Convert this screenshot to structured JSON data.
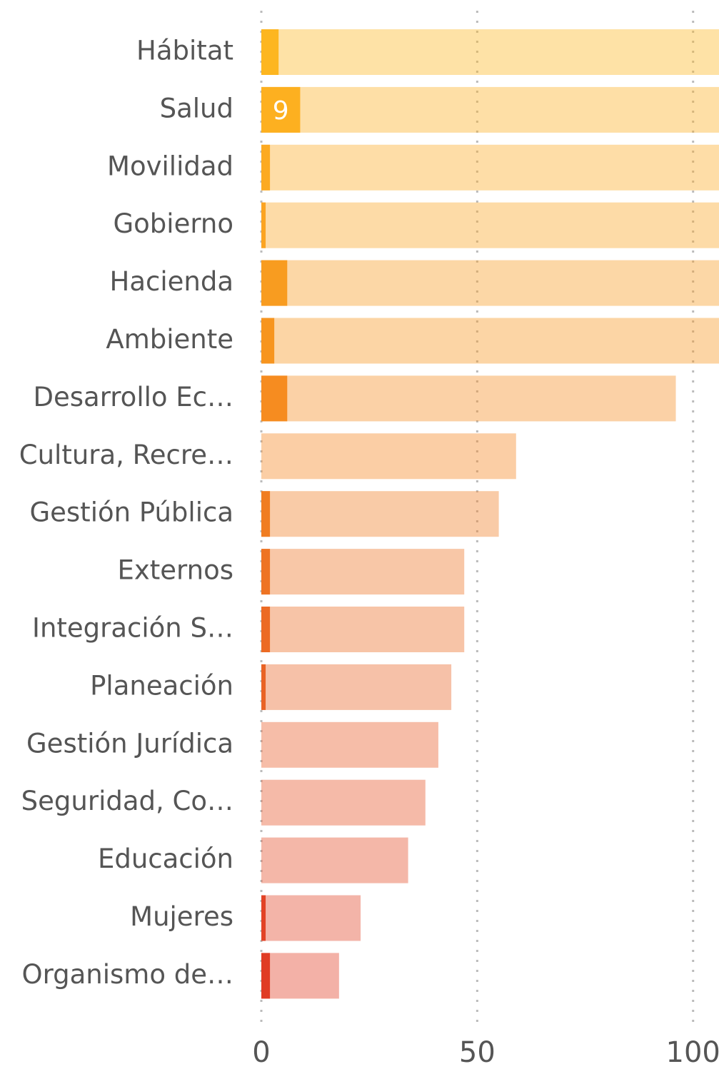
{
  "chart_data": {
    "type": "overlay_bar",
    "categories": [
      "Hábitat",
      "Salud",
      "Movilidad",
      "Gobierno",
      "Hacienda",
      "Ambiente",
      "Desarrollo Ec…",
      "Cultura, Recre…",
      "Gestión Pública",
      "Externos",
      "Integración S…",
      "Planeación",
      "Gestión Jurídica",
      "Seguridad, Co…",
      "Educación",
      "Mujeres",
      "Organismo de…"
    ],
    "values": [
      4,
      9,
      2,
      1,
      6,
      3,
      6,
      0,
      2,
      2,
      2,
      1,
      0,
      0,
      0,
      1,
      2
    ],
    "value_labels": [
      null,
      "9",
      null,
      null,
      null,
      null,
      null,
      null,
      null,
      null,
      null,
      null,
      null,
      null,
      null,
      null,
      null
    ],
    "totals": [
      110,
      110,
      110,
      110,
      110,
      110,
      96,
      59,
      55,
      47,
      47,
      44,
      41,
      38,
      34,
      23,
      18
    ],
    "colors": [
      "#fdb620",
      "#fdb020",
      "#fcaa22",
      "#fba422",
      "#f89c20",
      "#f7951f",
      "#f68c20",
      "#f4841f",
      "#f07d22",
      "#ee7424",
      "#ec6b24",
      "#e96325",
      "#e85b25",
      "#e65325",
      "#e44b25",
      "#e24326",
      "#e03c24"
    ],
    "xlim": [
      0,
      106
    ],
    "xticks": [
      0,
      50,
      100
    ],
    "grid": true
  }
}
